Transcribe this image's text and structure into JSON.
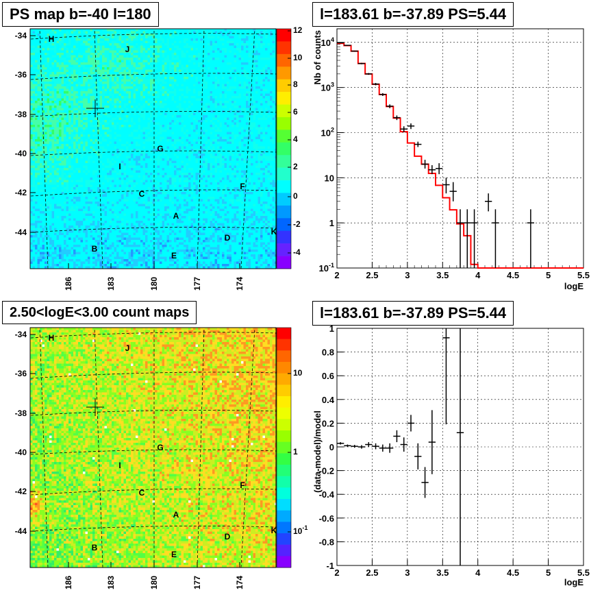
{
  "panels": {
    "tl": {
      "title": "PS map b=-40 l=180"
    },
    "tr": {
      "title": "l=183.61 b=-37.89 PS=5.44"
    },
    "bl": {
      "title": "2.50<logE<3.00 count maps"
    },
    "br": {
      "title": "l=183.61 b=-37.89 PS=5.44"
    }
  },
  "maps": {
    "y_ticks": [
      "-34",
      "-36",
      "-38",
      "-40",
      "-42",
      "-44"
    ],
    "x_ticks": [
      "186",
      "183",
      "180",
      "177",
      "174"
    ],
    "sources": [
      {
        "label": "H"
      },
      {
        "label": "J"
      },
      {
        "label": "G"
      },
      {
        "label": "I"
      },
      {
        "label": "F"
      },
      {
        "label": "C"
      },
      {
        "label": "A"
      },
      {
        "label": "D"
      },
      {
        "label": "K"
      },
      {
        "label": "B"
      },
      {
        "label": "E"
      }
    ],
    "ps_colorbar_ticks": [
      "12",
      "10",
      "8",
      "6",
      "4",
      "2",
      "0",
      "-2",
      "-4"
    ],
    "count_colorbar_ticks": [
      "10",
      "1",
      "10^-1"
    ]
  },
  "chart_data": [
    {
      "type": "line",
      "title": "l=183.61 b=-37.89 PS=5.44",
      "xlabel": "logE",
      "ylabel": "Nb of counts",
      "xlim": [
        2,
        5.5
      ],
      "ylim": [
        0.1,
        20000
      ],
      "yscale": "log",
      "x_ticks": [
        "2",
        "2.5",
        "3",
        "3.5",
        "4",
        "4.5",
        "5",
        "5.5"
      ],
      "y_ticks": [
        {
          "v": 10000,
          "t": "10^4"
        },
        {
          "v": 1000,
          "t": "10^3"
        },
        {
          "v": 100,
          "t": "10^2"
        },
        {
          "v": 10,
          "t": "10"
        },
        {
          "v": 1,
          "t": "1"
        },
        {
          "v": 0.1,
          "t": "10^-1"
        }
      ],
      "grid": true,
      "model_color": "#ff0000",
      "model_bins": [
        2.0,
        2.1,
        2.2,
        2.3,
        2.4,
        2.5,
        2.6,
        2.7,
        2.8,
        2.9,
        3.0,
        3.1,
        3.2,
        3.3,
        3.4,
        3.5,
        3.6,
        3.7,
        3.8,
        3.9,
        4.0,
        5.5
      ],
      "model_values": [
        9500,
        8500,
        6400,
        3400,
        2000,
        1180,
        700,
        380,
        210,
        105,
        59,
        30,
        20,
        12.5,
        6.8,
        3.6,
        1.95,
        0.95,
        0.52,
        0.12,
        0.1
      ],
      "data_points": [
        {
          "x": 2.05,
          "y": 9800,
          "lo": 9600,
          "hi": 10000
        },
        {
          "x": 2.15,
          "y": 8600,
          "lo": 8420,
          "hi": 8780
        },
        {
          "x": 2.25,
          "y": 6400,
          "lo": 6240,
          "hi": 6560
        },
        {
          "x": 2.35,
          "y": 3400,
          "lo": 3280,
          "hi": 3520
        },
        {
          "x": 2.45,
          "y": 2000,
          "lo": 1910,
          "hi": 2090
        },
        {
          "x": 2.55,
          "y": 1190,
          "lo": 1120,
          "hi": 1260
        },
        {
          "x": 2.65,
          "y": 700,
          "lo": 650,
          "hi": 750
        },
        {
          "x": 2.75,
          "y": 385,
          "lo": 348,
          "hi": 422
        },
        {
          "x": 2.85,
          "y": 215,
          "lo": 190,
          "hi": 240
        },
        {
          "x": 2.95,
          "y": 120,
          "lo": 102,
          "hi": 138
        },
        {
          "x": 3.05,
          "y": 140,
          "lo": 120,
          "hi": 160
        },
        {
          "x": 3.15,
          "y": 55,
          "lo": 48,
          "hi": 63
        },
        {
          "x": 3.25,
          "y": 20,
          "lo": 16,
          "hi": 25
        },
        {
          "x": 3.35,
          "y": 15,
          "lo": 12,
          "hi": 19
        },
        {
          "x": 3.45,
          "y": 16,
          "lo": 12,
          "hi": 21
        },
        {
          "x": 3.55,
          "y": 7,
          "lo": 4.5,
          "hi": 10
        },
        {
          "x": 3.65,
          "y": 5,
          "lo": 3,
          "hi": 8
        },
        {
          "x": 3.75,
          "y": 1,
          "lo": 0.1,
          "hi": 2
        },
        {
          "x": 3.85,
          "y": 1,
          "lo": 0.1,
          "hi": 2
        },
        {
          "x": 3.95,
          "y": 1,
          "lo": 0.1,
          "hi": 2
        },
        {
          "x": 4.15,
          "y": 3,
          "lo": 1.8,
          "hi": 4.5
        },
        {
          "x": 4.25,
          "y": 1,
          "lo": 0.1,
          "hi": 2
        },
        {
          "x": 4.75,
          "y": 1,
          "lo": 0.1,
          "hi": 2
        }
      ]
    },
    {
      "type": "scatter",
      "title": "l=183.61 b=-37.89 PS=5.44",
      "xlabel": "logE",
      "ylabel": "(data-model)/model",
      "xlim": [
        2,
        5.5
      ],
      "ylim": [
        -1,
        1
      ],
      "x_ticks": [
        "2",
        "2.5",
        "3",
        "3.5",
        "4",
        "4.5",
        "5",
        "5.5"
      ],
      "y_ticks": [
        "1",
        "0.8",
        "0.6",
        "0.4",
        "0.2",
        "0",
        "-0.2",
        "-0.4",
        "-0.6",
        "-0.8",
        "-1"
      ],
      "grid": true,
      "data_points": [
        {
          "x": 2.05,
          "y": 0.03,
          "e": 0.01
        },
        {
          "x": 2.15,
          "y": 0.01,
          "e": 0.01
        },
        {
          "x": 2.25,
          "y": 0.005,
          "e": 0.012
        },
        {
          "x": 2.35,
          "y": 0.0,
          "e": 0.015
        },
        {
          "x": 2.45,
          "y": 0.02,
          "e": 0.02
        },
        {
          "x": 2.55,
          "y": 0.005,
          "e": 0.025
        },
        {
          "x": 2.65,
          "y": -0.01,
          "e": 0.03
        },
        {
          "x": 2.75,
          "y": -0.01,
          "e": 0.04
        },
        {
          "x": 2.85,
          "y": 0.09,
          "e": 0.05
        },
        {
          "x": 2.95,
          "y": 0.02,
          "e": 0.06
        },
        {
          "x": 3.05,
          "y": 0.2,
          "e": 0.07
        },
        {
          "x": 3.15,
          "y": -0.08,
          "e": 0.11
        },
        {
          "x": 3.25,
          "y": -0.3,
          "e": 0.13
        },
        {
          "x": 3.35,
          "y": 0.04,
          "e": 0.27
        },
        {
          "x": 3.55,
          "y": 0.92,
          "e": 0.73
        },
        {
          "x": 3.75,
          "y": 0.12,
          "e": 1.2
        }
      ]
    }
  ]
}
